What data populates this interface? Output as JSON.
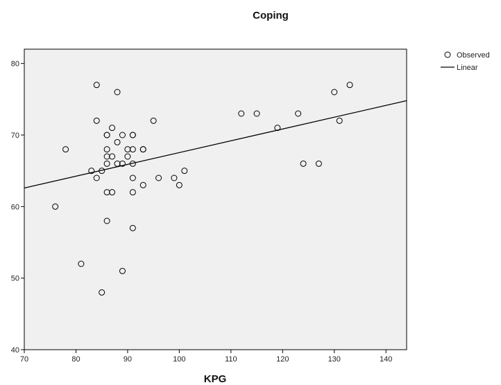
{
  "chart_data": {
    "type": "scatter",
    "title": "Coping",
    "xlabel": "KPG",
    "ylabel": "",
    "xlim": [
      70,
      144
    ],
    "ylim": [
      40,
      82
    ],
    "xticks": [
      70,
      80,
      90,
      100,
      110,
      120,
      130,
      140
    ],
    "yticks": [
      40,
      50,
      60,
      70,
      80
    ],
    "grid": false,
    "legend": {
      "placement": "top-right",
      "entries": [
        "Observed",
        "Linear"
      ]
    },
    "colors": {
      "plot_background": "#f0f0f0",
      "marker_stroke": "#000000",
      "line": "#000000"
    },
    "series": [
      {
        "name": "Observed",
        "type": "scatter",
        "points": [
          {
            "x": 76,
            "y": 60
          },
          {
            "x": 78,
            "y": 68
          },
          {
            "x": 81,
            "y": 52
          },
          {
            "x": 83,
            "y": 65
          },
          {
            "x": 84,
            "y": 77
          },
          {
            "x": 84,
            "y": 72
          },
          {
            "x": 84,
            "y": 64
          },
          {
            "x": 85,
            "y": 65
          },
          {
            "x": 85,
            "y": 48
          },
          {
            "x": 86,
            "y": 70
          },
          {
            "x": 86,
            "y": 70
          },
          {
            "x": 86,
            "y": 68
          },
          {
            "x": 86,
            "y": 67
          },
          {
            "x": 86,
            "y": 66
          },
          {
            "x": 86,
            "y": 62
          },
          {
            "x": 86,
            "y": 58
          },
          {
            "x": 87,
            "y": 71
          },
          {
            "x": 87,
            "y": 67
          },
          {
            "x": 87,
            "y": 62
          },
          {
            "x": 88,
            "y": 76
          },
          {
            "x": 88,
            "y": 69
          },
          {
            "x": 88,
            "y": 66
          },
          {
            "x": 89,
            "y": 70
          },
          {
            "x": 89,
            "y": 66
          },
          {
            "x": 89,
            "y": 51
          },
          {
            "x": 90,
            "y": 68
          },
          {
            "x": 90,
            "y": 67
          },
          {
            "x": 91,
            "y": 70
          },
          {
            "x": 91,
            "y": 70
          },
          {
            "x": 91,
            "y": 68
          },
          {
            "x": 91,
            "y": 66
          },
          {
            "x": 91,
            "y": 64
          },
          {
            "x": 91,
            "y": 62
          },
          {
            "x": 91,
            "y": 57
          },
          {
            "x": 93,
            "y": 68
          },
          {
            "x": 93,
            "y": 68
          },
          {
            "x": 93,
            "y": 63
          },
          {
            "x": 95,
            "y": 72
          },
          {
            "x": 96,
            "y": 64
          },
          {
            "x": 99,
            "y": 64
          },
          {
            "x": 100,
            "y": 63
          },
          {
            "x": 101,
            "y": 65
          },
          {
            "x": 112,
            "y": 73
          },
          {
            "x": 115,
            "y": 73
          },
          {
            "x": 119,
            "y": 71
          },
          {
            "x": 123,
            "y": 73
          },
          {
            "x": 124,
            "y": 66
          },
          {
            "x": 127,
            "y": 66
          },
          {
            "x": 130,
            "y": 76
          },
          {
            "x": 131,
            "y": 72
          },
          {
            "x": 133,
            "y": 77
          }
        ]
      },
      {
        "name": "Linear",
        "type": "line",
        "points": [
          {
            "x": 70,
            "y": 62.6
          },
          {
            "x": 144,
            "y": 74.8
          }
        ]
      }
    ]
  }
}
